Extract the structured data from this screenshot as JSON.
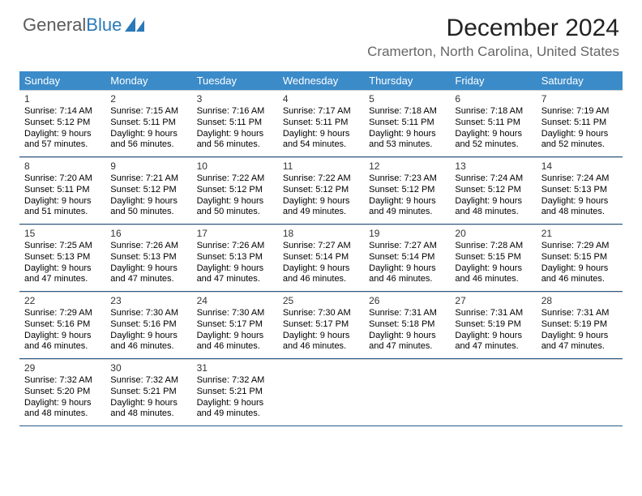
{
  "logo": {
    "text1": "General",
    "text2": "Blue"
  },
  "title": "December 2024",
  "location": "Cramerton, North Carolina, United States",
  "colors": {
    "header_bg": "#3b8bc9",
    "header_text": "#ffffff",
    "week_border": "#2a5b88",
    "logo_gray": "#5b5b5b",
    "logo_blue": "#2a7ab8"
  },
  "day_names": [
    "Sunday",
    "Monday",
    "Tuesday",
    "Wednesday",
    "Thursday",
    "Friday",
    "Saturday"
  ],
  "weeks": [
    [
      {
        "n": "1",
        "sr": "Sunrise: 7:14 AM",
        "ss": "Sunset: 5:12 PM",
        "d1": "Daylight: 9 hours",
        "d2": "and 57 minutes."
      },
      {
        "n": "2",
        "sr": "Sunrise: 7:15 AM",
        "ss": "Sunset: 5:11 PM",
        "d1": "Daylight: 9 hours",
        "d2": "and 56 minutes."
      },
      {
        "n": "3",
        "sr": "Sunrise: 7:16 AM",
        "ss": "Sunset: 5:11 PM",
        "d1": "Daylight: 9 hours",
        "d2": "and 56 minutes."
      },
      {
        "n": "4",
        "sr": "Sunrise: 7:17 AM",
        "ss": "Sunset: 5:11 PM",
        "d1": "Daylight: 9 hours",
        "d2": "and 54 minutes."
      },
      {
        "n": "5",
        "sr": "Sunrise: 7:18 AM",
        "ss": "Sunset: 5:11 PM",
        "d1": "Daylight: 9 hours",
        "d2": "and 53 minutes."
      },
      {
        "n": "6",
        "sr": "Sunrise: 7:18 AM",
        "ss": "Sunset: 5:11 PM",
        "d1": "Daylight: 9 hours",
        "d2": "and 52 minutes."
      },
      {
        "n": "7",
        "sr": "Sunrise: 7:19 AM",
        "ss": "Sunset: 5:11 PM",
        "d1": "Daylight: 9 hours",
        "d2": "and 52 minutes."
      }
    ],
    [
      {
        "n": "8",
        "sr": "Sunrise: 7:20 AM",
        "ss": "Sunset: 5:11 PM",
        "d1": "Daylight: 9 hours",
        "d2": "and 51 minutes."
      },
      {
        "n": "9",
        "sr": "Sunrise: 7:21 AM",
        "ss": "Sunset: 5:12 PM",
        "d1": "Daylight: 9 hours",
        "d2": "and 50 minutes."
      },
      {
        "n": "10",
        "sr": "Sunrise: 7:22 AM",
        "ss": "Sunset: 5:12 PM",
        "d1": "Daylight: 9 hours",
        "d2": "and 50 minutes."
      },
      {
        "n": "11",
        "sr": "Sunrise: 7:22 AM",
        "ss": "Sunset: 5:12 PM",
        "d1": "Daylight: 9 hours",
        "d2": "and 49 minutes."
      },
      {
        "n": "12",
        "sr": "Sunrise: 7:23 AM",
        "ss": "Sunset: 5:12 PM",
        "d1": "Daylight: 9 hours",
        "d2": "and 49 minutes."
      },
      {
        "n": "13",
        "sr": "Sunrise: 7:24 AM",
        "ss": "Sunset: 5:12 PM",
        "d1": "Daylight: 9 hours",
        "d2": "and 48 minutes."
      },
      {
        "n": "14",
        "sr": "Sunrise: 7:24 AM",
        "ss": "Sunset: 5:13 PM",
        "d1": "Daylight: 9 hours",
        "d2": "and 48 minutes."
      }
    ],
    [
      {
        "n": "15",
        "sr": "Sunrise: 7:25 AM",
        "ss": "Sunset: 5:13 PM",
        "d1": "Daylight: 9 hours",
        "d2": "and 47 minutes."
      },
      {
        "n": "16",
        "sr": "Sunrise: 7:26 AM",
        "ss": "Sunset: 5:13 PM",
        "d1": "Daylight: 9 hours",
        "d2": "and 47 minutes."
      },
      {
        "n": "17",
        "sr": "Sunrise: 7:26 AM",
        "ss": "Sunset: 5:13 PM",
        "d1": "Daylight: 9 hours",
        "d2": "and 47 minutes."
      },
      {
        "n": "18",
        "sr": "Sunrise: 7:27 AM",
        "ss": "Sunset: 5:14 PM",
        "d1": "Daylight: 9 hours",
        "d2": "and 46 minutes."
      },
      {
        "n": "19",
        "sr": "Sunrise: 7:27 AM",
        "ss": "Sunset: 5:14 PM",
        "d1": "Daylight: 9 hours",
        "d2": "and 46 minutes."
      },
      {
        "n": "20",
        "sr": "Sunrise: 7:28 AM",
        "ss": "Sunset: 5:15 PM",
        "d1": "Daylight: 9 hours",
        "d2": "and 46 minutes."
      },
      {
        "n": "21",
        "sr": "Sunrise: 7:29 AM",
        "ss": "Sunset: 5:15 PM",
        "d1": "Daylight: 9 hours",
        "d2": "and 46 minutes."
      }
    ],
    [
      {
        "n": "22",
        "sr": "Sunrise: 7:29 AM",
        "ss": "Sunset: 5:16 PM",
        "d1": "Daylight: 9 hours",
        "d2": "and 46 minutes."
      },
      {
        "n": "23",
        "sr": "Sunrise: 7:30 AM",
        "ss": "Sunset: 5:16 PM",
        "d1": "Daylight: 9 hours",
        "d2": "and 46 minutes."
      },
      {
        "n": "24",
        "sr": "Sunrise: 7:30 AM",
        "ss": "Sunset: 5:17 PM",
        "d1": "Daylight: 9 hours",
        "d2": "and 46 minutes."
      },
      {
        "n": "25",
        "sr": "Sunrise: 7:30 AM",
        "ss": "Sunset: 5:17 PM",
        "d1": "Daylight: 9 hours",
        "d2": "and 46 minutes."
      },
      {
        "n": "26",
        "sr": "Sunrise: 7:31 AM",
        "ss": "Sunset: 5:18 PM",
        "d1": "Daylight: 9 hours",
        "d2": "and 47 minutes."
      },
      {
        "n": "27",
        "sr": "Sunrise: 7:31 AM",
        "ss": "Sunset: 5:19 PM",
        "d1": "Daylight: 9 hours",
        "d2": "and 47 minutes."
      },
      {
        "n": "28",
        "sr": "Sunrise: 7:31 AM",
        "ss": "Sunset: 5:19 PM",
        "d1": "Daylight: 9 hours",
        "d2": "and 47 minutes."
      }
    ],
    [
      {
        "n": "29",
        "sr": "Sunrise: 7:32 AM",
        "ss": "Sunset: 5:20 PM",
        "d1": "Daylight: 9 hours",
        "d2": "and 48 minutes."
      },
      {
        "n": "30",
        "sr": "Sunrise: 7:32 AM",
        "ss": "Sunset: 5:21 PM",
        "d1": "Daylight: 9 hours",
        "d2": "and 48 minutes."
      },
      {
        "n": "31",
        "sr": "Sunrise: 7:32 AM",
        "ss": "Sunset: 5:21 PM",
        "d1": "Daylight: 9 hours",
        "d2": "and 49 minutes."
      },
      null,
      null,
      null,
      null
    ]
  ]
}
